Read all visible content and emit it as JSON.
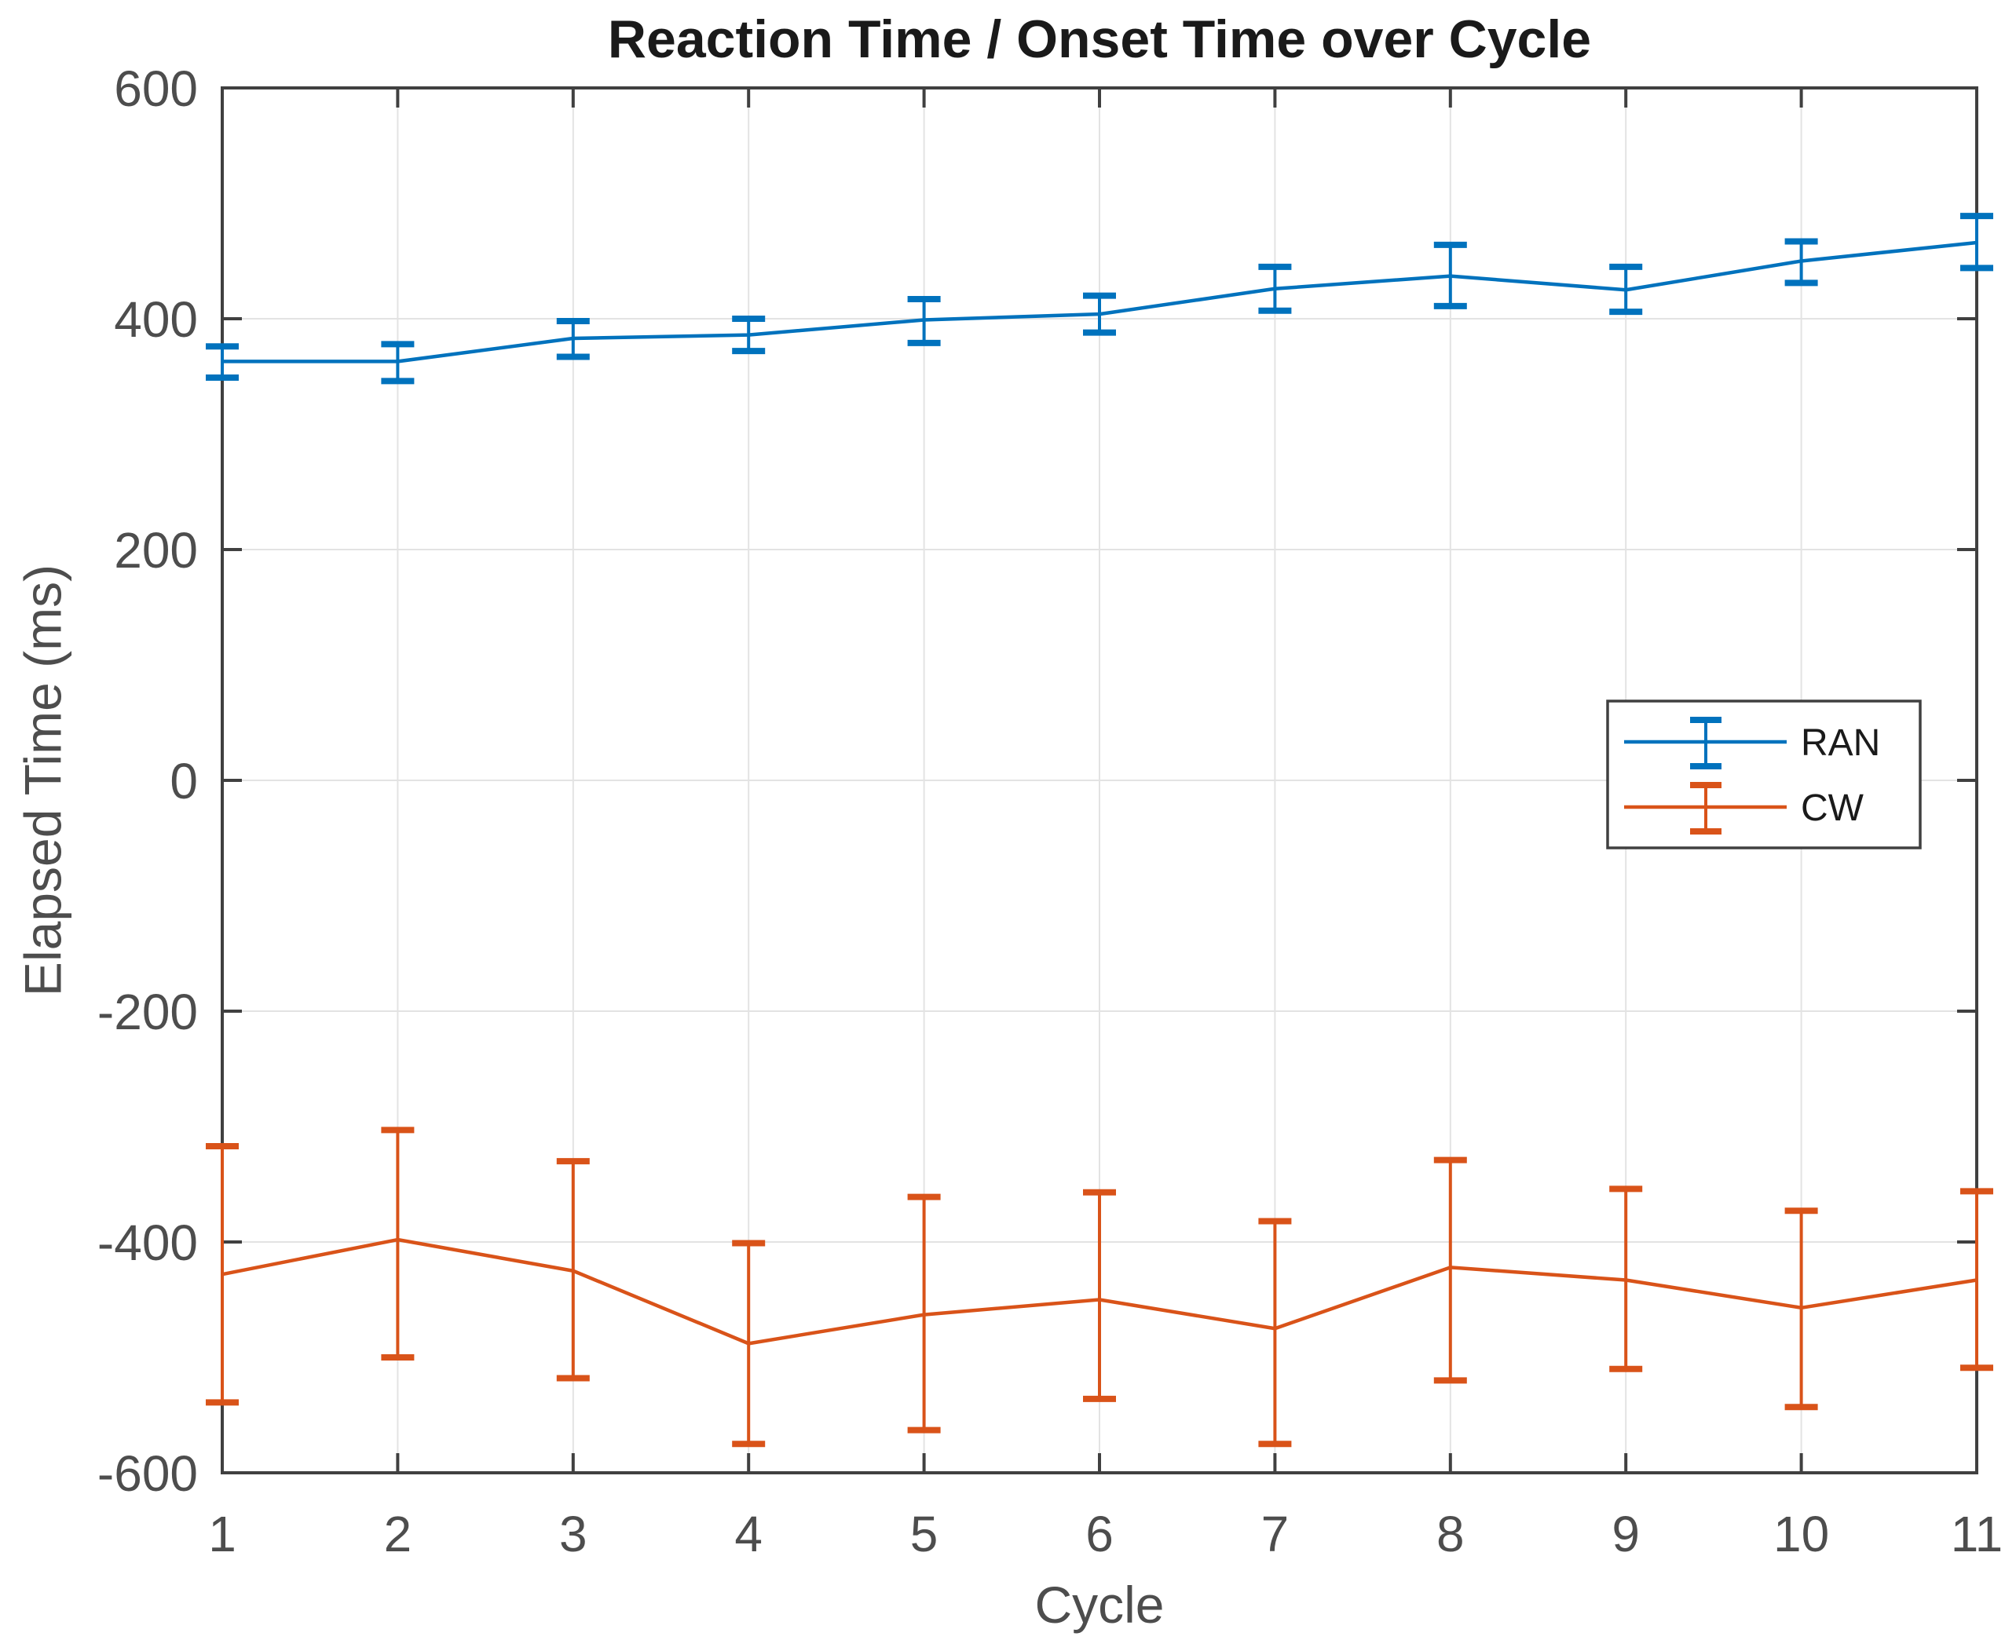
{
  "figure": {
    "title": "Reaction Time / Onset Time over Cycle",
    "xlabel": "Cycle",
    "ylabel": "Elapsed Time (ms)"
  },
  "style": {
    "background": "#ffffff",
    "axis_color": "#404040",
    "grid_color": "#e3e3e3",
    "tick_label_color": "#4d4d4d",
    "title_color": "#1a1a1a",
    "legend_text_color": "#1a1a1a",
    "legend_border_color": "#404040",
    "legend_background": "#ffffff"
  },
  "chart_data": {
    "type": "line",
    "title": "Reaction Time / Onset Time over Cycle",
    "xlabel": "Cycle",
    "ylabel": "Elapsed Time (ms)",
    "x": [
      1,
      2,
      3,
      4,
      5,
      6,
      7,
      8,
      9,
      10,
      11
    ],
    "xlim": [
      1,
      11
    ],
    "ylim": [
      -600,
      600
    ],
    "x_ticks": [
      1,
      2,
      3,
      4,
      5,
      6,
      7,
      8,
      9,
      10,
      11
    ],
    "y_ticks": [
      -600,
      -400,
      -200,
      0,
      200,
      400,
      600
    ],
    "grid": true,
    "error_bars": true,
    "legend_position": "right-middle",
    "series": [
      {
        "name": "RAN",
        "color": "#0072BD",
        "values": [
          363,
          363,
          383,
          386,
          399,
          404,
          426,
          437,
          425,
          450,
          466
        ],
        "err_up": [
          13,
          15,
          15,
          14,
          18,
          16,
          19,
          27,
          20,
          17,
          23
        ],
        "err_down": [
          14,
          17,
          16,
          14,
          20,
          16,
          19,
          26,
          19,
          19,
          22
        ]
      },
      {
        "name": "CW",
        "color": "#D95319",
        "values": [
          -428,
          -398,
          -425,
          -488,
          -463,
          -450,
          -475,
          -422,
          -433,
          -457,
          -433
        ],
        "err_up": [
          111,
          95,
          95,
          87,
          102,
          93,
          93,
          93,
          79,
          84,
          77
        ],
        "err_down": [
          111,
          102,
          93,
          87,
          100,
          86,
          100,
          98,
          77,
          86,
          76
        ]
      }
    ]
  }
}
